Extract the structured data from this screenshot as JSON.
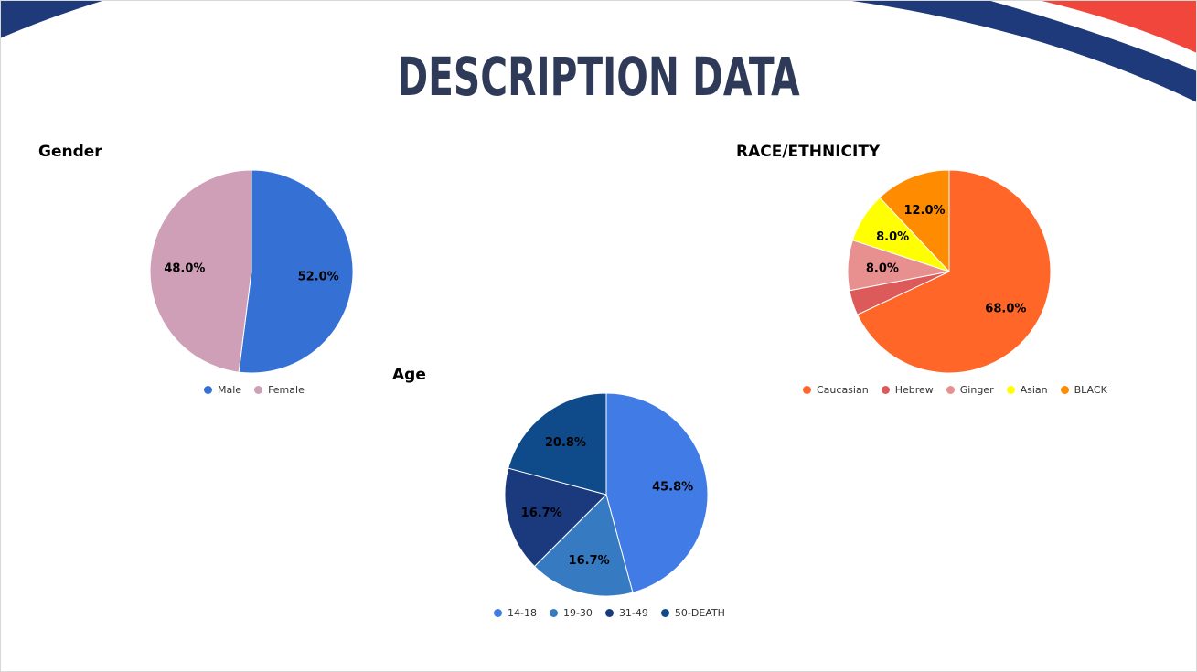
{
  "slide": {
    "title": "DESCRIPTION DATA"
  },
  "colors": {
    "title": "#2e3a57",
    "navy_band": "#1e3a7b",
    "red_band": "#f0463c"
  },
  "chart_data": [
    {
      "type": "pie",
      "title": "Gender",
      "categories": [
        "Male",
        "Female"
      ],
      "values": [
        52.0,
        48.0
      ],
      "labels": [
        "52.0%",
        "48.0%"
      ],
      "colors": [
        "#3570d4",
        "#cf9fb8"
      ],
      "legend": "bottom"
    },
    {
      "type": "pie",
      "title": "RACE/ETHNICITY",
      "categories": [
        "Caucasian",
        "Hebrew",
        "Ginger",
        "Asian",
        "BLACK"
      ],
      "values": [
        68.0,
        4.0,
        8.0,
        8.0,
        12.0
      ],
      "labels": [
        "68.0%",
        "",
        "8.0%",
        "8.0%",
        "12.0%"
      ],
      "colors": [
        "#ff6628",
        "#dc5a5a",
        "#e89090",
        "#ffff00",
        "#ff8c00"
      ],
      "legend": "bottom"
    },
    {
      "type": "pie",
      "title": "Age",
      "categories": [
        "14-18",
        "19-30",
        "31-49",
        "50-DEATH"
      ],
      "values": [
        45.8,
        16.7,
        16.7,
        20.8
      ],
      "labels": [
        "45.8%",
        "16.7%",
        "16.7%",
        "20.8%"
      ],
      "colors": [
        "#417be6",
        "#367ac2",
        "#1b3a7e",
        "#0f4a8a"
      ],
      "legend": "bottom"
    }
  ]
}
